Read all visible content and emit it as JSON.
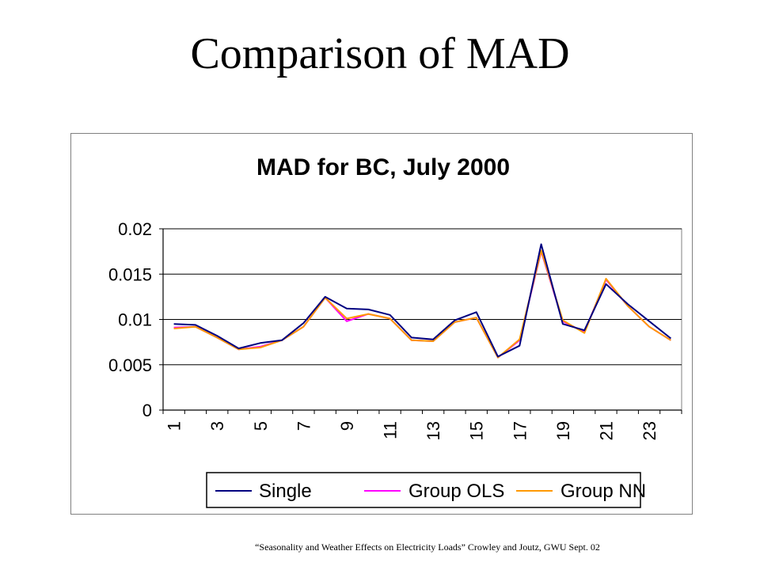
{
  "slide": {
    "title": "Comparison of MAD",
    "footer": "“Seasonality and Weather Effects on Electricity  Loads” Crowley  and Joutz, GWU Sept. 02"
  },
  "colors": {
    "single": "#000080",
    "group_ols": "#ff00ff",
    "group_nn": "#ff9900",
    "plot_bg": "#ffffff",
    "grid": "#000000"
  },
  "chart_data": {
    "type": "line",
    "title": "MAD for BC, July 2000",
    "xlabel": "",
    "ylabel": "",
    "ylim": [
      0,
      0.02
    ],
    "yticks": [
      "0",
      "0.005",
      "0.01",
      "0.015",
      "0.02"
    ],
    "ytick_values": [
      0,
      0.005,
      0.01,
      0.015,
      0.02
    ],
    "x": [
      1,
      2,
      3,
      4,
      5,
      6,
      7,
      8,
      9,
      10,
      11,
      12,
      13,
      14,
      15,
      16,
      17,
      18,
      19,
      20,
      21,
      22,
      23,
      24
    ],
    "xtick_labels": [
      "1",
      "3",
      "5",
      "7",
      "9",
      "11",
      "13",
      "15",
      "17",
      "19",
      "21",
      "23"
    ],
    "grid": true,
    "legend_position": "bottom",
    "series": [
      {
        "name": "Single",
        "color_key": "single",
        "values": [
          0.0095,
          0.0094,
          0.0082,
          0.0068,
          0.0074,
          0.0077,
          0.0096,
          0.0125,
          0.0112,
          0.0111,
          0.0105,
          0.008,
          0.0078,
          0.0099,
          0.0108,
          0.0059,
          0.0071,
          0.0183,
          0.0095,
          0.0088,
          0.0139,
          0.0117,
          0.0098,
          0.0079
        ]
      },
      {
        "name": "Group OLS",
        "color_key": "group_ols",
        "values": [
          0.0091,
          0.0092,
          0.008,
          0.0067,
          0.007,
          0.0077,
          0.0092,
          0.0124,
          0.0098,
          0.0106,
          0.0101,
          0.0077,
          0.0076,
          0.0097,
          0.0102,
          0.0058,
          0.0077,
          0.0175,
          0.0098,
          0.0086,
          0.0144,
          0.0115,
          0.0092,
          0.0077
        ]
      },
      {
        "name": "Group NN",
        "color_key": "group_nn",
        "values": [
          0.009,
          0.0092,
          0.008,
          0.0067,
          0.0069,
          0.0077,
          0.0092,
          0.0124,
          0.0101,
          0.0106,
          0.0101,
          0.0077,
          0.0076,
          0.0097,
          0.0102,
          0.0058,
          0.0078,
          0.0176,
          0.0099,
          0.0085,
          0.0145,
          0.0115,
          0.0092,
          0.0077
        ]
      }
    ]
  }
}
